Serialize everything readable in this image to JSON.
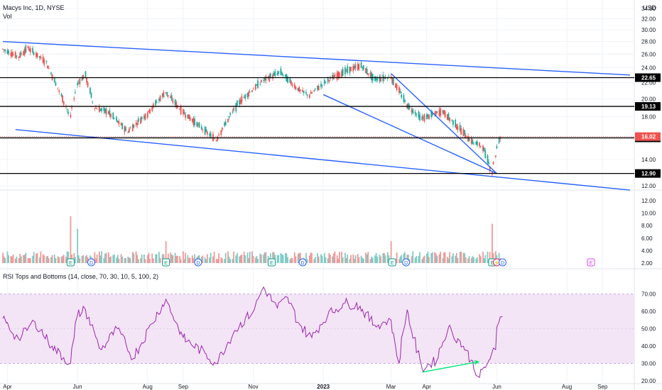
{
  "chart_data": [
    {
      "type": "candlestick",
      "title": "Macys Inc, 1D, NYSE",
      "currency": "USD",
      "x_axis_labels": [
        "Apr",
        "Jun",
        "Aug",
        "Sep",
        "Nov",
        "2023",
        "Mar",
        "Apr",
        "Jun",
        "Aug",
        "Sep"
      ],
      "y_axis": {
        "scale": "log",
        "range": [
          12.0,
          34.0
        ],
        "tick_labels": [
          "34.00",
          "32.00",
          "30.00",
          "28.00",
          "26.00",
          "24.00",
          "22.00",
          "20.00",
          "18.00",
          "16.00",
          "14.00",
          "12.00"
        ]
      },
      "price_series": [
        {
          "date": "2022-03-28",
          "close": 26.8
        },
        {
          "date": "2022-04-11",
          "close": 25.6
        },
        {
          "date": "2022-04-19",
          "close": 27.0
        },
        {
          "date": "2022-05-05",
          "close": 24.8
        },
        {
          "date": "2022-05-18",
          "close": 20.4
        },
        {
          "date": "2022-05-26",
          "close": 18.0
        },
        {
          "date": "2022-06-01",
          "close": 21.8
        },
        {
          "date": "2022-06-08",
          "close": 23.0
        },
        {
          "date": "2022-06-16",
          "close": 19.0
        },
        {
          "date": "2022-06-28",
          "close": 18.5
        },
        {
          "date": "2022-07-15",
          "close": 16.5
        },
        {
          "date": "2022-08-01",
          "close": 18.3
        },
        {
          "date": "2022-08-17",
          "close": 20.8
        },
        {
          "date": "2022-09-01",
          "close": 18.5
        },
        {
          "date": "2022-09-20",
          "close": 16.6
        },
        {
          "date": "2022-09-30",
          "close": 15.7
        },
        {
          "date": "2022-10-20",
          "close": 19.6
        },
        {
          "date": "2022-11-10",
          "close": 22.3
        },
        {
          "date": "2022-11-25",
          "close": 23.4
        },
        {
          "date": "2022-12-10",
          "close": 21.2
        },
        {
          "date": "2022-12-20",
          "close": 20.4
        },
        {
          "date": "2023-01-05",
          "close": 22.3
        },
        {
          "date": "2023-01-20",
          "close": 23.5
        },
        {
          "date": "2023-02-03",
          "close": 24.3
        },
        {
          "date": "2023-02-15",
          "close": 22.4
        },
        {
          "date": "2023-03-01",
          "close": 22.8
        },
        {
          "date": "2023-03-15",
          "close": 19.3
        },
        {
          "date": "2023-03-28",
          "close": 17.8
        },
        {
          "date": "2023-04-15",
          "close": 18.6
        },
        {
          "date": "2023-05-10",
          "close": 15.6
        },
        {
          "date": "2023-05-20",
          "close": 15.1
        },
        {
          "date": "2023-05-28",
          "close": 13.0
        },
        {
          "date": "2023-06-03",
          "close": 15.7
        },
        {
          "date": "2023-06-06",
          "close": 16.02
        }
      ],
      "price_levels": [
        {
          "value": 22.65,
          "label": "22.65",
          "style": "black"
        },
        {
          "value": 19.13,
          "label": "19.13",
          "style": "black"
        },
        {
          "value": 15.9,
          "label": "15.90",
          "style": "black"
        },
        {
          "value": 12.9,
          "label": "12.90",
          "style": "black"
        },
        {
          "value": 16.02,
          "label": "16.02",
          "style": "last-price",
          "color": "#ef5350"
        }
      ],
      "trendlines": [
        {
          "from": {
            "date": "2022-03-28",
            "price": 28.0
          },
          "to": {
            "date": "2023-09-25",
            "price": 23.0
          }
        },
        {
          "from": {
            "date": "2022-04-08",
            "price": 16.7
          },
          "to": {
            "date": "2023-09-25",
            "price": 11.7
          }
        },
        {
          "from": {
            "date": "2023-01-01",
            "price": 20.5
          },
          "to": {
            "date": "2023-06-01",
            "price": 12.9
          }
        },
        {
          "from": {
            "date": "2023-03-01",
            "price": 23.2
          },
          "to": {
            "date": "2023-06-01",
            "price": 12.9
          }
        }
      ],
      "colors": {
        "up": "#26a69a",
        "down": "#ef5350",
        "trendline": "#2962ff",
        "level": "#000000"
      }
    },
    {
      "type": "bar",
      "title": "Vol",
      "y_axis": {
        "range": [
          0,
          12.0
        ],
        "tick_labels": [
          "12.00",
          "10.00",
          "8.00",
          "6.00",
          "4.00",
          "2.00"
        ]
      },
      "spikes": [
        {
          "date": "2022-05-26",
          "value": 9.5
        },
        {
          "date": "2022-06-01",
          "value": 7.5
        },
        {
          "date": "2022-07-01",
          "value": 8.0
        },
        {
          "date": "2022-08-17",
          "value": 5.5
        },
        {
          "date": "2022-11-17",
          "value": 9.0
        },
        {
          "date": "2023-03-01",
          "value": 5.5
        },
        {
          "date": "2023-05-28",
          "value": 8.3
        }
      ],
      "event_markers": [
        {
          "date": "2022-05-26",
          "label": "E",
          "kind": "earnings"
        },
        {
          "date": "2022-06-13",
          "label": "D",
          "kind": "dividend"
        },
        {
          "date": "2022-08-17",
          "label": "E",
          "kind": "earnings"
        },
        {
          "date": "2022-09-14",
          "label": "D",
          "kind": "dividend"
        },
        {
          "date": "2022-11-17",
          "label": "E",
          "kind": "earnings"
        },
        {
          "date": "2022-12-14",
          "label": "D",
          "kind": "dividend"
        },
        {
          "date": "2023-03-02",
          "label": "E",
          "kind": "earnings"
        },
        {
          "date": "2023-03-14",
          "label": "D",
          "kind": "dividend"
        },
        {
          "date": "2023-05-28",
          "label": "E",
          "kind": "earnings"
        },
        {
          "date": "2023-06-01",
          "label": "⚡",
          "kind": "split"
        },
        {
          "date": "2023-06-06",
          "label": "D",
          "kind": "dividend"
        },
        {
          "date": "2023-08-22",
          "label": "E",
          "kind": "earnings"
        }
      ],
      "colors": {
        "up": "#26a69a",
        "down": "#ef5350"
      }
    },
    {
      "type": "line",
      "title": "RSI Tops and Bottoms (14, close, 70, 30, 10, 5, 100, 2)",
      "y_axis": {
        "range": [
          18,
          78
        ],
        "tick_labels": [
          "70.00",
          "60.00",
          "50.00",
          "40.00",
          "30.00",
          "20.00"
        ]
      },
      "band": [
        30,
        70
      ],
      "series": [
        {
          "date": "2022-03-28",
          "value": 56
        },
        {
          "date": "2022-04-11",
          "value": 44
        },
        {
          "date": "2022-04-25",
          "value": 54
        },
        {
          "date": "2022-05-10",
          "value": 40
        },
        {
          "date": "2022-05-26",
          "value": 30
        },
        {
          "date": "2022-06-01",
          "value": 58
        },
        {
          "date": "2022-06-08",
          "value": 61
        },
        {
          "date": "2022-06-22",
          "value": 38
        },
        {
          "date": "2022-07-06",
          "value": 50
        },
        {
          "date": "2022-07-20",
          "value": 33
        },
        {
          "date": "2022-08-05",
          "value": 53
        },
        {
          "date": "2022-08-17",
          "value": 67
        },
        {
          "date": "2022-09-01",
          "value": 45
        },
        {
          "date": "2022-09-20",
          "value": 36
        },
        {
          "date": "2022-09-30",
          "value": 30
        },
        {
          "date": "2022-10-15",
          "value": 48
        },
        {
          "date": "2022-11-01",
          "value": 60
        },
        {
          "date": "2022-11-10",
          "value": 74
        },
        {
          "date": "2022-11-22",
          "value": 62
        },
        {
          "date": "2022-12-01",
          "value": 68
        },
        {
          "date": "2022-12-12",
          "value": 52
        },
        {
          "date": "2022-12-22",
          "value": 45
        },
        {
          "date": "2023-01-05",
          "value": 58
        },
        {
          "date": "2023-01-20",
          "value": 65
        },
        {
          "date": "2023-02-02",
          "value": 63
        },
        {
          "date": "2023-02-15",
          "value": 52
        },
        {
          "date": "2023-03-01",
          "value": 55
        },
        {
          "date": "2023-03-08",
          "value": 30
        },
        {
          "date": "2023-03-15",
          "value": 61
        },
        {
          "date": "2023-03-28",
          "value": 27
        },
        {
          "date": "2023-04-10",
          "value": 32
        },
        {
          "date": "2023-04-20",
          "value": 51
        },
        {
          "date": "2023-05-03",
          "value": 40
        },
        {
          "date": "2023-05-10",
          "value": 32
        },
        {
          "date": "2023-05-17",
          "value": 22
        },
        {
          "date": "2023-05-24",
          "value": 30
        },
        {
          "date": "2023-05-31",
          "value": 38
        },
        {
          "date": "2023-06-01",
          "value": 51
        },
        {
          "date": "2023-06-03",
          "value": 54
        },
        {
          "date": "2023-06-06",
          "value": 57
        }
      ],
      "divergence_arrow": {
        "from": {
          "date": "2023-03-28",
          "value": 25
        },
        "to": {
          "date": "2023-05-16",
          "value": 31
        }
      },
      "colors": {
        "line": "#9c27b0",
        "band": "#f3e5f5",
        "arrow": "#00e676"
      }
    }
  ]
}
